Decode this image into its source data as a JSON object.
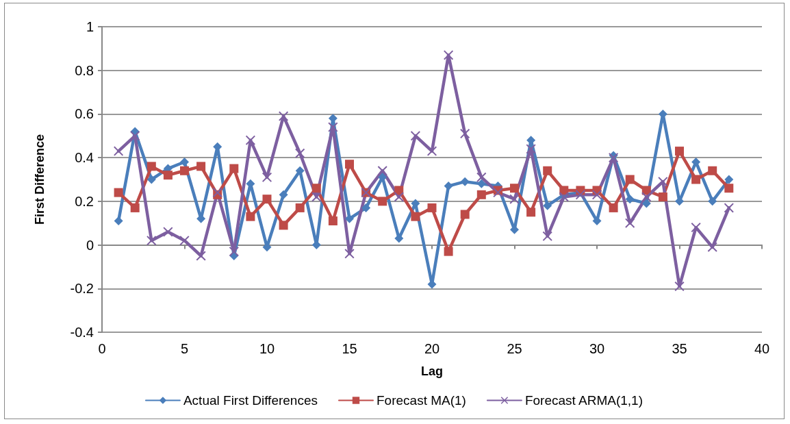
{
  "chart_data": {
    "type": "line",
    "xlabel": "Lag",
    "ylabel": "First Difference",
    "x": [
      1,
      2,
      3,
      4,
      5,
      6,
      7,
      8,
      9,
      10,
      11,
      12,
      13,
      14,
      15,
      16,
      17,
      18,
      19,
      20,
      21,
      22,
      23,
      24,
      25,
      26,
      27,
      28,
      29,
      30,
      31,
      32,
      33,
      34,
      35,
      36,
      37,
      38
    ],
    "xlim": [
      0,
      40
    ],
    "xticks": [
      0,
      5,
      10,
      15,
      20,
      25,
      30,
      35,
      40
    ],
    "ylim": [
      -0.4,
      1
    ],
    "yticks": [
      -0.4,
      -0.2,
      0,
      0.2,
      0.4,
      0.6,
      0.8,
      1
    ],
    "grid": "y",
    "legend": "bottom",
    "line_style": "solid",
    "series": [
      {
        "name": "Actual First Differences",
        "color": "#4a7ebb",
        "marker": "diamond",
        "values": [
          0.11,
          0.52,
          0.3,
          0.35,
          0.38,
          0.12,
          0.45,
          -0.05,
          0.28,
          -0.01,
          0.23,
          0.34,
          0.0,
          0.58,
          0.12,
          0.17,
          0.31,
          0.03,
          0.19,
          -0.18,
          0.27,
          0.29,
          0.28,
          0.27,
          0.07,
          0.48,
          0.18,
          0.23,
          0.24,
          0.11,
          0.41,
          0.21,
          0.19,
          0.6,
          0.2,
          0.38,
          0.2,
          0.3
        ]
      },
      {
        "name": "Forecast MA(1)",
        "color": "#be4b48",
        "marker": "square",
        "values": [
          0.24,
          0.17,
          0.36,
          0.32,
          0.34,
          0.36,
          0.23,
          0.35,
          0.13,
          0.21,
          0.09,
          0.17,
          0.26,
          0.11,
          0.37,
          0.24,
          0.2,
          0.25,
          0.13,
          0.17,
          -0.03,
          0.14,
          0.23,
          0.25,
          0.26,
          0.15,
          0.34,
          0.25,
          0.25,
          0.25,
          0.17,
          0.3,
          0.25,
          0.22,
          0.43,
          0.3,
          0.34,
          0.26
        ]
      },
      {
        "name": "Forecast ARMA(1,1)",
        "color": "#7d5fa0",
        "marker": "cross",
        "values": [
          0.43,
          0.5,
          0.02,
          0.06,
          0.02,
          -0.05,
          0.24,
          -0.03,
          0.48,
          0.31,
          0.59,
          0.42,
          0.22,
          0.54,
          -0.04,
          0.24,
          0.34,
          0.22,
          0.5,
          0.43,
          0.87,
          0.51,
          0.31,
          0.24,
          0.21,
          0.44,
          0.04,
          0.22,
          0.23,
          0.23,
          0.4,
          0.1,
          0.22,
          0.29,
          -0.19,
          0.08,
          -0.01,
          0.17
        ]
      }
    ]
  }
}
